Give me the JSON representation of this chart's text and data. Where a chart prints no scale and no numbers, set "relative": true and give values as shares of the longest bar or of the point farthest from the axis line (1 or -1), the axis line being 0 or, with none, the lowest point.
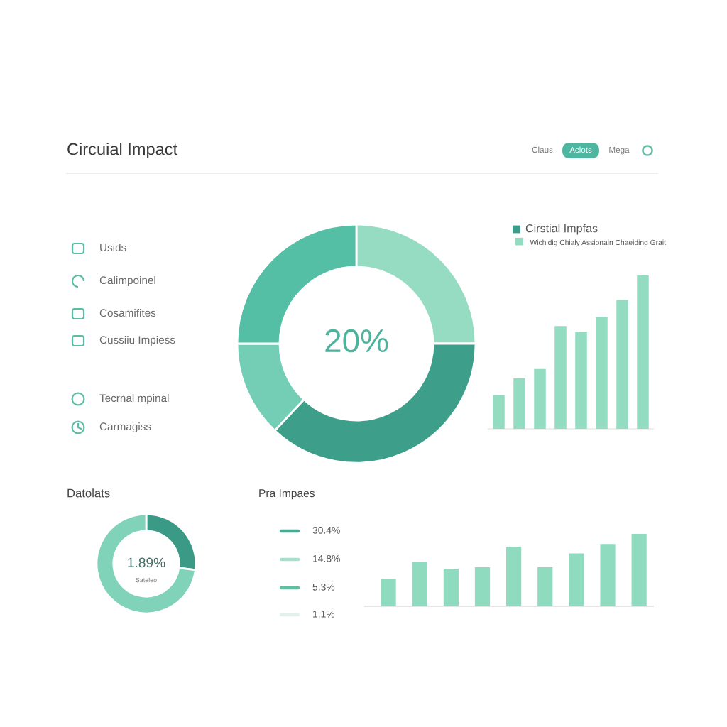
{
  "chart_data": [
    {
      "type": "other",
      "title": "Circuial Impact",
      "annotations": [
        "Claus",
        "Aclots",
        "Mega"
      ]
    },
    {
      "type": "other",
      "annotations": [
        "Usids",
        "Calimpoinel",
        "Cosamifites",
        "Cussiiu Impiess",
        "Tecrnal mpinal",
        "Carmagiss"
      ]
    },
    {
      "type": "donut",
      "categories": [
        null,
        null,
        null,
        null
      ],
      "values": [
        25,
        37,
        13,
        25
      ],
      "colors": [
        "#95dcc2",
        "#3d9e8a",
        "#74ceb6",
        "#55bfa6"
      ],
      "annotations": [
        "20%"
      ]
    },
    {
      "type": "bar",
      "relative": true,
      "legend_title": "Cirstial Impfas",
      "categories": [
        null,
        null,
        null,
        null,
        null,
        null,
        null,
        null
      ],
      "series": [
        {
          "name": "Wichidig Chialy Assionain Chaeiding Grait",
          "color": "#93dcc1",
          "values": [
            0.22,
            0.33,
            0.39,
            0.67,
            0.63,
            0.73,
            0.84,
            1
          ]
        }
      ],
      "legend": "top"
    },
    {
      "type": "donut",
      "title": "Datolats",
      "categories": [
        null,
        null
      ],
      "values": [
        27,
        73
      ],
      "colors": [
        "#3a9a86",
        "#80d3b9"
      ],
      "annotations": [
        "1.89%",
        "Sateleo"
      ]
    },
    {
      "type": "other",
      "title": "Pra Impaes",
      "annotations": [
        "30.4%",
        "14.8%",
        "5.3%",
        "1.1%"
      ],
      "colors": [
        "#4aa992",
        "#a6e0cc",
        "#5fbfa5",
        "#e3f1ec"
      ]
    },
    {
      "type": "bar",
      "relative": true,
      "categories": [
        null,
        null,
        null,
        null,
        null,
        null,
        null,
        null,
        null
      ],
      "values": [
        0.38,
        0.61,
        0.52,
        0.54,
        0.82,
        0.54,
        0.73,
        0.86,
        1
      ],
      "color": "#8edbc0"
    }
  ]
}
